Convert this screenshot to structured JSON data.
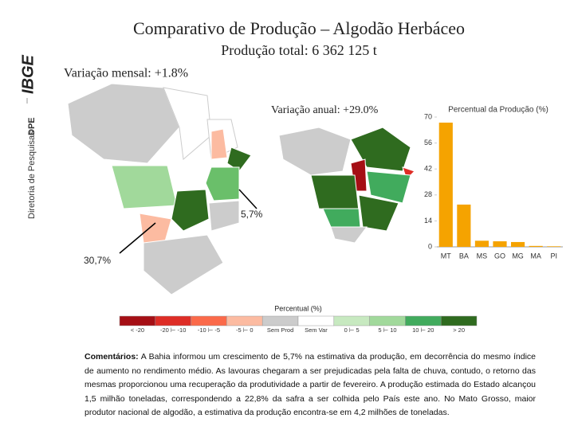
{
  "sidebar": {
    "org": "IBGE",
    "dept": "Diretoria de Pesquisas",
    "dept_abbr": "DPE"
  },
  "header": {
    "title": "Comparativo de Produção – Algodão Herbáceo",
    "subtitle": "Produção total: 6 362 125 t"
  },
  "maps": {
    "monthly": {
      "label": "Variação mensal: +1.8%",
      "annotations": [
        "5,7%",
        "30,7%"
      ]
    },
    "annual": {
      "label": "Variação anual: +29.0%"
    }
  },
  "legend": {
    "title": "Percentual (%)",
    "items": [
      {
        "label": "< -20",
        "color": "#a50f15"
      },
      {
        "label": "-20 ⊢ -10",
        "color": "#de2d26"
      },
      {
        "label": "-10 ⊢ -5",
        "color": "#fb6a4a"
      },
      {
        "label": "-5 ⊢ 0",
        "color": "#fcbba1"
      },
      {
        "label": "Sem Prod",
        "color": "#cccccc"
      },
      {
        "label": "Sem Var",
        "color": "#ffffff"
      },
      {
        "label": "0 ⊢ 5",
        "color": "#c7e9c0"
      },
      {
        "label": "5 ⊢ 10",
        "color": "#a1d99b"
      },
      {
        "label": "10 ⊢ 20",
        "color": "#41ab5d"
      },
      {
        "label": "> 20",
        "color": "#2f6b1f"
      }
    ]
  },
  "chart_data": {
    "type": "bar",
    "title": "Percentual da Produção (%)",
    "categories": [
      "MT",
      "BA",
      "MS",
      "GO",
      "MG",
      "MA",
      "PI"
    ],
    "values": [
      67,
      22.8,
      3.3,
      3,
      2.6,
      0.5,
      0.3
    ],
    "color": "#f5a300",
    "ylim": [
      0,
      70
    ],
    "yticks": [
      0,
      14,
      28,
      42,
      56,
      70
    ],
    "grid": false
  },
  "comments": {
    "label": "Comentários:",
    "text": "A Bahia informou um crescimento de 5,7% na estimativa da produção, em decorrência do mesmo índice de aumento no rendimento médio. As lavouras chegaram a ser prejudicadas pela falta de chuva, contudo, o retorno das mesmas proporcionou uma recuperação da produtividade a partir de fevereiro. A produção estimada do Estado alcançou 1,5 milhão toneladas, correspondendo a 22,8% da safra a ser colhida pelo País este ano. No Mato Grosso, maior produtor nacional de algodão, a estimativa da produção encontra-se em 4,2 milhões de toneladas."
  }
}
